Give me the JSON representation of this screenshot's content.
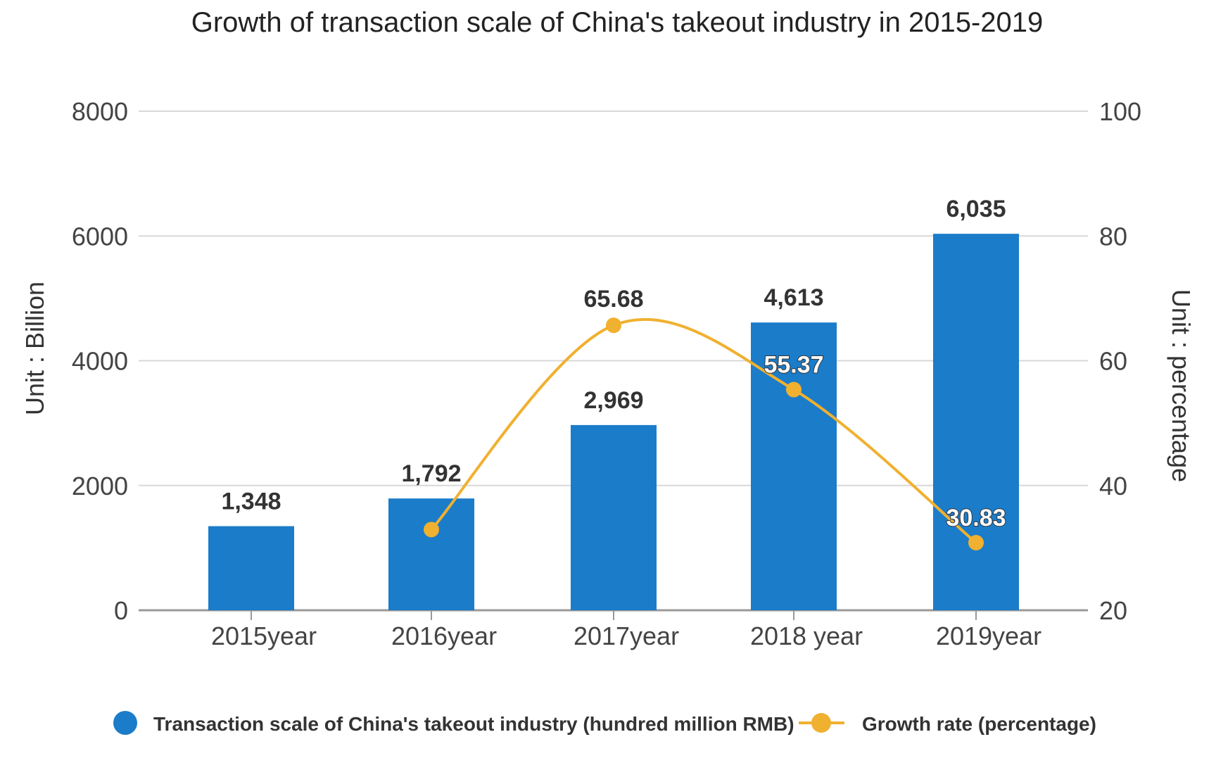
{
  "chart_data": {
    "type": "bar+line",
    "title": "Growth of transaction scale of China's takeout industry in 2015-2019",
    "categories": [
      "2015year",
      "2016year",
      "2017year",
      "2018 year",
      "2019year"
    ],
    "ylabel_left": "Unit : Billion",
    "ylabel_right": "Unit : percentage",
    "ylim_left": [
      0,
      8000
    ],
    "ylim_right": [
      20,
      100
    ],
    "yticks_left": [
      "0",
      "2000",
      "4000",
      "6000",
      "8000"
    ],
    "yticks_right": [
      "20",
      "40",
      "60",
      "80",
      "100"
    ],
    "grid": true,
    "legend_position": "bottom",
    "series": [
      {
        "name": "Transaction scale of China's takeout industry (hundred million RMB)",
        "type": "bar",
        "axis": "left",
        "color": "#1b7cc9",
        "values": [
          1348,
          1792,
          2969,
          4613,
          6035
        ],
        "labels": [
          "1,348",
          "1,792",
          "2,969",
          "4,613",
          "6,035"
        ]
      },
      {
        "name": "Growth rate (percentage)",
        "type": "line",
        "axis": "right",
        "color": "#f0b030",
        "values": [
          null,
          32.94,
          65.68,
          55.37,
          30.83
        ],
        "labels": [
          null,
          null,
          "65.68",
          "55.37",
          "30.83"
        ]
      }
    ]
  }
}
